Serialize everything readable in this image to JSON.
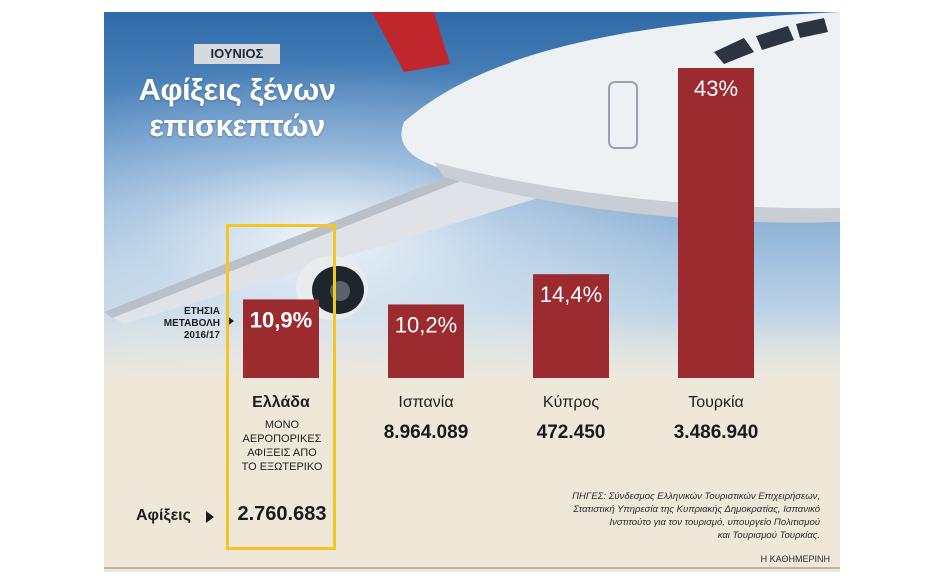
{
  "header": {
    "month_badge": "ΙΟΥΝΙΟΣ",
    "title": "Αφίξεις ξένων\nεπισκεπτών"
  },
  "annual_change_label": "ΕΤΗΣΙΑ\nΜΕΤΑΒΟΛΗ\n2016/17",
  "arrivals_label": "Αφίξεις",
  "greece_note": "ΜΟΝΟ\nΑΕΡΟΠΟΡΙΚΕΣ\nΑΦΙΞΕΙΣ ΑΠΟ\nΤΟ ΕΞΩΤΕΡΙΚΟ",
  "sources": "ΠΗΓΕΣ: Σύνδεσμος Ελληνικών Τουριστικών Επιχειρήσεων,\nΣτατιστική Υπηρεσία της Κυπριακής Δημοκρατίας, Ισπανικό\nΙνστιτούτο για τον τουρισμό, υπουργείο Πολιτισμού\nκαι Τουρισμού Τουρκίας.",
  "credit": "Η ΚΑΘΗΜΕΡΙΝΗ",
  "colors": {
    "bar": "#9b2b2e",
    "highlight": "#f3c623",
    "title": "#ffffff"
  },
  "chart_data": {
    "type": "bar",
    "title": "Αφίξεις ξένων επισκεπτών",
    "subtitle": "ΙΟΥΝΙΟΣ",
    "categories": [
      "Ελλάδα",
      "Ισπανία",
      "Κύπρος",
      "Τουρκία"
    ],
    "values": [
      10.9,
      10.2,
      14.4,
      43
    ],
    "value_labels": [
      "10,9%",
      "10,2%",
      "14,4%",
      "43%"
    ],
    "arrivals": [
      "2.760.683",
      "8.964.089",
      "472.450",
      "3.486.940"
    ],
    "highlighted": "Ελλάδα",
    "ylim": [
      0,
      43
    ]
  }
}
